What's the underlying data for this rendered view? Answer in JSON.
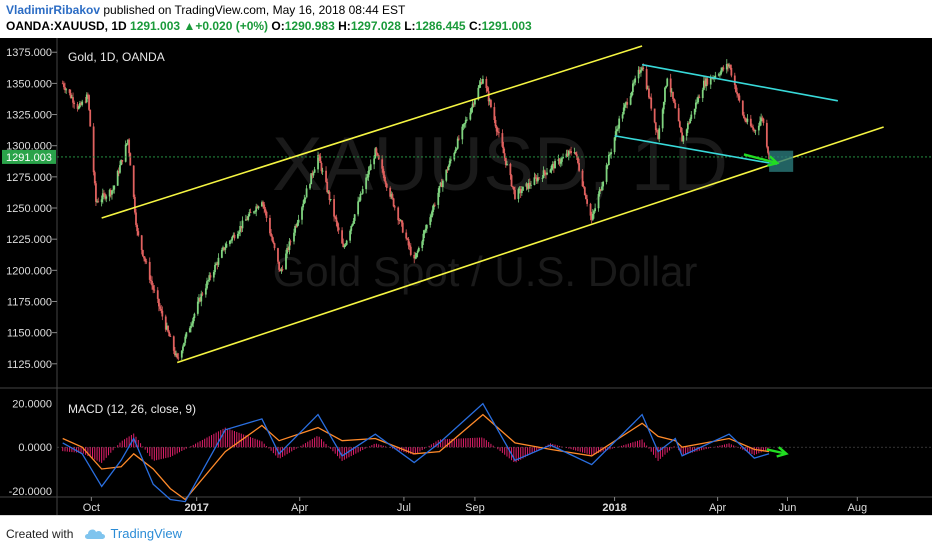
{
  "header": {
    "author": "VladimirRibakov",
    "published_text": " published on TradingView.com, May 16, 2018 08:44 EST",
    "symbol": "OANDA:XAUUSD, 1D",
    "last": "1291.003",
    "change": "+0.020 (+0%)",
    "o_label": "O:",
    "o": "1290.983",
    "h_label": "H:",
    "h": "1297.028",
    "l_label": "L:",
    "l": "1286.445",
    "c_label": "C:",
    "c": "1291.003"
  },
  "watermark": {
    "symbol": "XAUUSD, 1D",
    "description": "Gold Spot / U.S. Dollar"
  },
  "footer": {
    "created_with": "Created with",
    "brand": "TradingView"
  },
  "colors": {
    "up": "#7fd37f",
    "down": "#e0615f",
    "channel": "#f5f542",
    "wedge": "#38d9d9",
    "macd": "#2a6fe0",
    "signal": "#ff8a2a",
    "hist": "#e0206a",
    "arrow": "#22dd22",
    "price_box": "#2a7a7a"
  },
  "chart_data": [
    {
      "type": "candlestick",
      "title": "Gold, 1D, OANDA",
      "x_labels": [
        "Oct",
        "2017",
        "Apr",
        "Jul",
        "Sep",
        "2018",
        "Apr",
        "Jun",
        "Aug"
      ],
      "y_ticks": [
        "1375.000",
        "1350.000",
        "1325.000",
        "1300.000",
        "1275.000",
        "1250.000",
        "1225.000",
        "1200.000",
        "1175.000",
        "1150.000",
        "1125.000"
      ],
      "ylim": [
        1112,
        1380
      ],
      "last_price": 1291.003,
      "price_points": [
        [
          "2016-09-06",
          1350
        ],
        [
          "2016-09-20",
          1330
        ],
        [
          "2016-09-28",
          1340
        ],
        [
          "2016-10-05",
          1255
        ],
        [
          "2016-10-20",
          1265
        ],
        [
          "2016-11-02",
          1305
        ],
        [
          "2016-11-10",
          1230
        ],
        [
          "2016-11-24",
          1185
        ],
        [
          "2016-12-15",
          1128
        ],
        [
          "2017-01-05",
          1180
        ],
        [
          "2017-01-25",
          1218
        ],
        [
          "2017-02-27",
          1257
        ],
        [
          "2017-03-15",
          1198
        ],
        [
          "2017-04-17",
          1292
        ],
        [
          "2017-05-09",
          1217
        ],
        [
          "2017-06-06",
          1295
        ],
        [
          "2017-07-10",
          1207
        ],
        [
          "2017-08-01",
          1265
        ],
        [
          "2017-09-08",
          1355
        ],
        [
          "2017-10-06",
          1260
        ],
        [
          "2017-11-27",
          1297
        ],
        [
          "2017-12-12",
          1240
        ],
        [
          "2018-01-05",
          1320
        ],
        [
          "2018-01-25",
          1365
        ],
        [
          "2018-02-08",
          1307
        ],
        [
          "2018-02-16",
          1356
        ],
        [
          "2018-03-01",
          1305
        ],
        [
          "2018-03-20",
          1350
        ],
        [
          "2018-04-11",
          1365
        ],
        [
          "2018-04-24",
          1322
        ],
        [
          "2018-05-03",
          1312
        ],
        [
          "2018-05-10",
          1323
        ],
        [
          "2018-05-16",
          1291
        ]
      ],
      "annotations": {
        "channel_upper": [
          [
            "2016-10-10",
            1242
          ],
          [
            "2018-01-25",
            1380
          ]
        ],
        "channel_lower": [
          [
            "2016-12-15",
            1126
          ],
          [
            "2018-08-24",
            1315
          ]
        ],
        "wedge_upper": [
          [
            "2018-01-25",
            1365
          ],
          [
            "2018-07-15",
            1336
          ]
        ],
        "wedge_lower": [
          [
            "2018-01-01",
            1308
          ],
          [
            "2018-05-23",
            1285
          ]
        ],
        "price_box": [
          [
            "2018-05-16",
            1296
          ],
          [
            "2018-06-06",
            1279
          ]
        ],
        "down_arrow": [
          [
            "2018-04-24",
            1293
          ],
          [
            "2018-05-23",
            1286
          ]
        ]
      }
    },
    {
      "type": "line",
      "title": "MACD (12, 26, close, 9)",
      "y_ticks": [
        "20.0000",
        "0.0000",
        "-20.0000"
      ],
      "ylim": [
        -27,
        24
      ],
      "series": [
        {
          "name": "MACD",
          "points": [
            [
              "2016-09-06",
              2
            ],
            [
              "2016-09-23",
              -3
            ],
            [
              "2016-10-10",
              -18
            ],
            [
              "2016-10-27",
              -6
            ],
            [
              "2016-11-07",
              4
            ],
            [
              "2016-11-24",
              -17
            ],
            [
              "2016-12-09",
              -24
            ],
            [
              "2016-12-22",
              -25
            ],
            [
              "2017-01-26",
              8
            ],
            [
              "2017-02-27",
              13
            ],
            [
              "2017-03-14",
              -3
            ],
            [
              "2017-04-17",
              15
            ],
            [
              "2017-05-08",
              -4
            ],
            [
              "2017-06-06",
              6
            ],
            [
              "2017-07-10",
              -7
            ],
            [
              "2017-08-01",
              2
            ],
            [
              "2017-09-08",
              20
            ],
            [
              "2017-10-06",
              -6
            ],
            [
              "2017-11-06",
              1
            ],
            [
              "2017-12-12",
              -8
            ],
            [
              "2018-01-25",
              15
            ],
            [
              "2018-02-08",
              -2
            ],
            [
              "2018-02-23",
              4
            ],
            [
              "2018-03-01",
              -4
            ],
            [
              "2018-04-11",
              6
            ],
            [
              "2018-05-03",
              -5
            ],
            [
              "2018-05-16",
              -3
            ]
          ]
        },
        {
          "name": "Signal",
          "points": [
            [
              "2016-09-06",
              4
            ],
            [
              "2016-09-23",
              0
            ],
            [
              "2016-10-10",
              -10
            ],
            [
              "2016-10-27",
              -9
            ],
            [
              "2016-11-07",
              -3
            ],
            [
              "2016-11-24",
              -10
            ],
            [
              "2016-12-09",
              -19
            ],
            [
              "2016-12-22",
              -24
            ],
            [
              "2017-01-26",
              -2
            ],
            [
              "2017-02-27",
              10
            ],
            [
              "2017-03-14",
              3
            ],
            [
              "2017-04-17",
              9
            ],
            [
              "2017-05-08",
              3
            ],
            [
              "2017-06-06",
              4
            ],
            [
              "2017-07-10",
              -3
            ],
            [
              "2017-08-01",
              -2
            ],
            [
              "2017-09-08",
              15
            ],
            [
              "2017-10-06",
              2
            ],
            [
              "2017-11-06",
              -1
            ],
            [
              "2017-12-12",
              -4
            ],
            [
              "2018-01-25",
              11
            ],
            [
              "2018-02-08",
              5
            ],
            [
              "2018-02-23",
              3
            ],
            [
              "2018-03-01",
              0
            ],
            [
              "2018-04-11",
              4
            ],
            [
              "2018-05-03",
              -1
            ],
            [
              "2018-05-16",
              -2
            ]
          ]
        }
      ],
      "arrow": [
        [
          "2018-05-14",
          -1
        ],
        [
          "2018-05-31",
          -3
        ]
      ]
    }
  ]
}
